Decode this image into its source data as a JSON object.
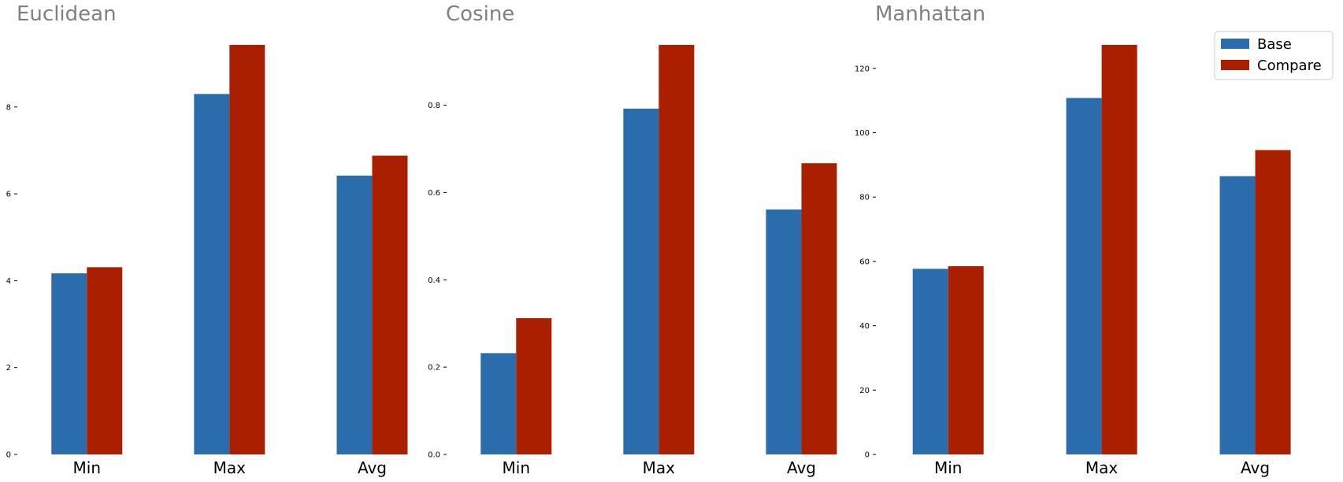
{
  "chart_data": [
    {
      "type": "bar",
      "title": "Euclidean",
      "categories": [
        "Min",
        "Max",
        "Avg"
      ],
      "series": [
        {
          "name": "Base",
          "values": [
            4.17,
            8.3,
            6.42
          ]
        },
        {
          "name": "Compare",
          "values": [
            4.31,
            9.43,
            6.88
          ]
        }
      ],
      "ylim": [
        0,
        9.43
      ],
      "yticks": [
        0,
        2,
        4,
        6,
        8
      ],
      "ytick_labels": [
        "0",
        "2",
        "4",
        "6",
        "8"
      ],
      "grid": false
    },
    {
      "type": "bar",
      "title": "Cosine",
      "categories": [
        "Min",
        "Max",
        "Avg"
      ],
      "series": [
        {
          "name": "Base",
          "values": [
            0.232,
            0.792,
            0.561
          ]
        },
        {
          "name": "Compare",
          "values": [
            0.312,
            0.938,
            0.667
          ]
        }
      ],
      "ylim": [
        0,
        0.938
      ],
      "yticks": [
        0.0,
        0.2,
        0.4,
        0.6,
        0.8
      ],
      "ytick_labels": [
        "0.0",
        "0.2",
        "0.4",
        "0.6",
        "0.8"
      ],
      "grid": false
    },
    {
      "type": "bar",
      "title": "Manhattan",
      "categories": [
        "Min",
        "Max",
        "Avg"
      ],
      "series": [
        {
          "name": "Base",
          "values": [
            57.7,
            110.8,
            86.5
          ]
        },
        {
          "name": "Compare",
          "values": [
            58.5,
            127.3,
            94.6
          ]
        }
      ],
      "ylim": [
        0,
        127.3
      ],
      "yticks": [
        0,
        20,
        40,
        60,
        80,
        100,
        120
      ],
      "ytick_labels": [
        "0",
        "20",
        "40",
        "60",
        "80",
        "100",
        "120"
      ],
      "grid": false
    }
  ],
  "legend": {
    "position": "top-right",
    "items": [
      {
        "label": "Base",
        "color": "#2b6cad"
      },
      {
        "label": "Compare",
        "color": "#a91f00"
      }
    ]
  },
  "colors": {
    "base": "#2b6cad",
    "compare": "#a91f00",
    "title": "#808080",
    "axis": "#000000"
  }
}
